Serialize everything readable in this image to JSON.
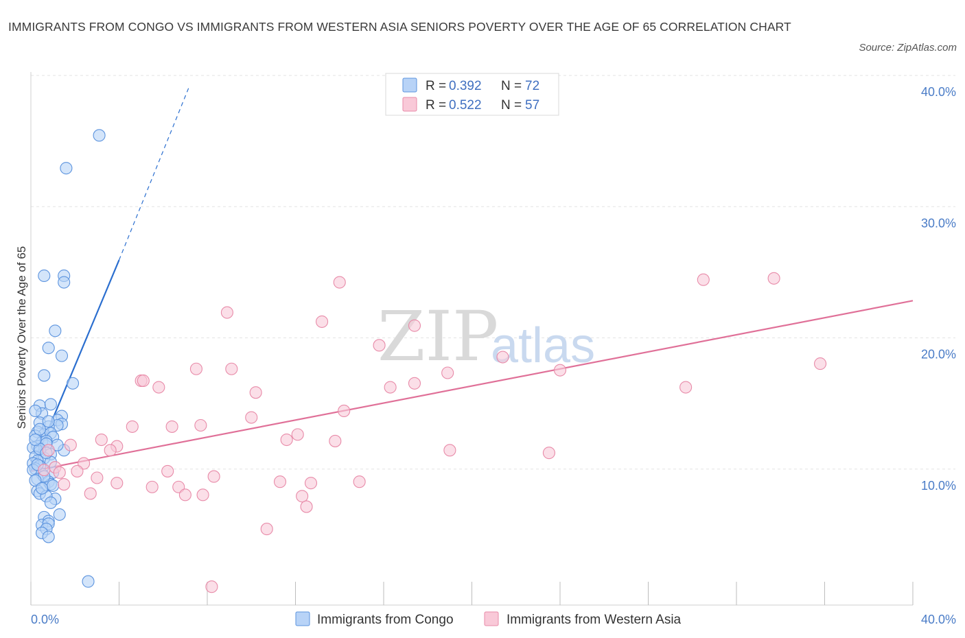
{
  "title": "IMMIGRANTS FROM CONGO VS IMMIGRANTS FROM WESTERN ASIA SENIORS POVERTY OVER THE AGE OF 65 CORRELATION CHART",
  "source": "Source: ZipAtlas.com",
  "watermark": {
    "zip": "ZIP",
    "atlas": "atlas"
  },
  "colors": {
    "congo_fill": "#b8d3f7",
    "congo_stroke": "#5b93de",
    "congo_line": "#2a6ecf",
    "wasia_fill": "#f9c9d8",
    "wasia_stroke": "#e88aa8",
    "wasia_line": "#e07098"
  },
  "legend": {
    "rows": [
      {
        "r_label": "R =",
        "r_value": "0.392",
        "n_label": "N =",
        "n_value": "72"
      },
      {
        "r_label": "R =",
        "r_value": "0.522",
        "n_label": "N =",
        "n_value": "57"
      }
    ]
  },
  "chart_data": {
    "type": "scatter",
    "title": "IMMIGRANTS FROM CONGO VS IMMIGRANTS FROM WESTERN ASIA SENIORS POVERTY OVER THE AGE OF 65 CORRELATION CHART",
    "xlabel": "",
    "ylabel": "Seniors Poverty Over the Age of 65",
    "xlim": [
      0,
      40
    ],
    "ylim": [
      0,
      40
    ],
    "x_tick_labels": [
      "0.0%",
      "40.0%"
    ],
    "y_tick_labels": [
      "10.0%",
      "20.0%",
      "30.0%",
      "40.0%"
    ],
    "y_ticks": [
      10,
      20,
      30,
      40
    ],
    "grid": true,
    "legend_position": "top-center",
    "series": [
      {
        "name": "Immigrants from Congo",
        "trend": {
          "x0": 0.0,
          "y0": 10.2,
          "x1": 4.0,
          "y1": 26.3,
          "dashed_to_x": 7.2,
          "dashed_to_y": 39.6
        },
        "points": [
          [
            3.1,
            35.8
          ],
          [
            1.6,
            33.3
          ],
          [
            0.6,
            25.1
          ],
          [
            1.5,
            25.1
          ],
          [
            1.5,
            24.6
          ],
          [
            1.1,
            20.9
          ],
          [
            0.8,
            19.6
          ],
          [
            1.4,
            19.0
          ],
          [
            0.6,
            17.5
          ],
          [
            0.4,
            15.2
          ],
          [
            0.9,
            15.3
          ],
          [
            0.5,
            14.6
          ],
          [
            1.4,
            14.4
          ],
          [
            1.2,
            14.1
          ],
          [
            1.4,
            13.8
          ],
          [
            0.4,
            13.9
          ],
          [
            1.2,
            13.7
          ],
          [
            0.8,
            13.6
          ],
          [
            0.3,
            13.2
          ],
          [
            0.6,
            13.0
          ],
          [
            0.9,
            13.1
          ],
          [
            1.0,
            12.8
          ],
          [
            0.2,
            12.9
          ],
          [
            0.5,
            12.4
          ],
          [
            0.7,
            12.5
          ],
          [
            0.3,
            12.1
          ],
          [
            0.1,
            12.0
          ],
          [
            1.5,
            11.8
          ],
          [
            0.4,
            11.7
          ],
          [
            0.9,
            11.5
          ],
          [
            0.2,
            11.3
          ],
          [
            0.6,
            11.2
          ],
          [
            0.3,
            11.0
          ],
          [
            0.1,
            10.8
          ],
          [
            0.4,
            10.6
          ],
          [
            0.2,
            10.4
          ],
          [
            0.1,
            10.3
          ],
          [
            1.0,
            10.1
          ],
          [
            0.5,
            10.0
          ],
          [
            0.3,
            9.6
          ],
          [
            0.8,
            9.4
          ],
          [
            0.6,
            9.0
          ],
          [
            0.9,
            9.2
          ],
          [
            0.3,
            8.7
          ],
          [
            0.4,
            8.5
          ],
          [
            1.1,
            8.1
          ],
          [
            0.7,
            8.3
          ],
          [
            0.9,
            7.8
          ],
          [
            1.3,
            6.9
          ],
          [
            0.6,
            6.7
          ],
          [
            0.8,
            6.4
          ],
          [
            0.5,
            6.1
          ],
          [
            0.8,
            6.2
          ],
          [
            0.7,
            5.8
          ],
          [
            0.5,
            5.5
          ],
          [
            0.8,
            5.2
          ],
          [
            2.6,
            1.8
          ],
          [
            1.9,
            16.9
          ],
          [
            0.2,
            14.8
          ],
          [
            1.2,
            12.2
          ],
          [
            0.7,
            12.3
          ],
          [
            0.4,
            11.9
          ],
          [
            0.9,
            10.9
          ],
          [
            0.3,
            10.7
          ],
          [
            0.6,
            9.8
          ],
          [
            1.0,
            9.1
          ],
          [
            0.2,
            9.5
          ],
          [
            0.5,
            8.9
          ],
          [
            0.4,
            13.4
          ],
          [
            0.7,
            11.6
          ],
          [
            0.2,
            12.6
          ],
          [
            0.8,
            14.0
          ]
        ]
      },
      {
        "name": "Immigrants from Western Asia",
        "trend": {
          "x0": 0.0,
          "y0": 10.2,
          "x1": 40.0,
          "y1": 23.2
        },
        "points": [
          [
            30.5,
            24.8
          ],
          [
            33.7,
            24.9
          ],
          [
            14.0,
            24.6
          ],
          [
            8.9,
            22.3
          ],
          [
            13.2,
            21.6
          ],
          [
            17.4,
            21.3
          ],
          [
            15.8,
            19.8
          ],
          [
            21.4,
            18.9
          ],
          [
            35.8,
            18.4
          ],
          [
            7.5,
            18.0
          ],
          [
            9.1,
            18.0
          ],
          [
            18.9,
            17.7
          ],
          [
            24.0,
            17.9
          ],
          [
            5.0,
            17.1
          ],
          [
            5.1,
            17.1
          ],
          [
            5.8,
            16.6
          ],
          [
            16.3,
            16.6
          ],
          [
            17.4,
            16.9
          ],
          [
            29.7,
            16.6
          ],
          [
            10.2,
            16.2
          ],
          [
            14.2,
            14.8
          ],
          [
            10.0,
            14.3
          ],
          [
            4.6,
            13.6
          ],
          [
            6.4,
            13.6
          ],
          [
            7.7,
            13.7
          ],
          [
            3.2,
            12.6
          ],
          [
            11.6,
            12.6
          ],
          [
            12.1,
            13.0
          ],
          [
            13.8,
            12.5
          ],
          [
            3.9,
            12.1
          ],
          [
            1.8,
            12.2
          ],
          [
            3.6,
            11.8
          ],
          [
            19.0,
            11.8
          ],
          [
            23.5,
            11.6
          ],
          [
            2.4,
            10.8
          ],
          [
            6.2,
            10.2
          ],
          [
            2.1,
            10.2
          ],
          [
            8.3,
            9.8
          ],
          [
            3.0,
            9.7
          ],
          [
            1.5,
            9.2
          ],
          [
            3.9,
            9.3
          ],
          [
            11.3,
            9.4
          ],
          [
            12.7,
            9.3
          ],
          [
            14.9,
            9.4
          ],
          [
            5.5,
            9.0
          ],
          [
            6.7,
            9.0
          ],
          [
            2.7,
            8.5
          ],
          [
            7.0,
            8.4
          ],
          [
            7.8,
            8.4
          ],
          [
            12.3,
            8.3
          ],
          [
            12.5,
            7.5
          ],
          [
            10.7,
            5.8
          ],
          [
            8.2,
            1.4
          ],
          [
            0.8,
            11.8
          ],
          [
            1.1,
            10.5
          ],
          [
            0.6,
            10.3
          ],
          [
            1.3,
            10.1
          ]
        ]
      }
    ]
  },
  "bottom_legend": {
    "items": [
      {
        "label": "Immigrants from Congo"
      },
      {
        "label": "Immigrants from Western Asia"
      }
    ]
  }
}
